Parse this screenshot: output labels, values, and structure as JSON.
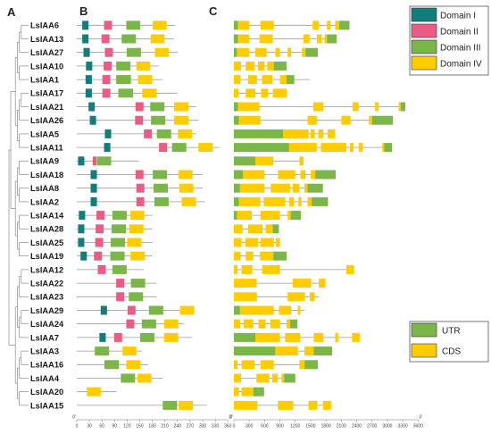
{
  "panels": {
    "a": "A",
    "b": "B",
    "c": "C"
  },
  "genes": [
    "LsIAA6",
    "LsIAA13",
    "LsIAA27",
    "LsIAA10",
    "LsIAA1",
    "LsIAA17",
    "LsIAA21",
    "LsIAA26",
    "LsIAA5",
    "LsIAA11",
    "LsIAA9",
    "LsIAA18",
    "LsIAA8",
    "LsIAA2",
    "LsIAA14",
    "LsIAA28",
    "LsIAA25",
    "LsIAA19",
    "LsIAA12",
    "LsIAA22",
    "LsIAA23",
    "LsIAA29",
    "LsIAA24",
    "LsIAA7",
    "LsIAA3",
    "LsIAA16",
    "LsIAA4",
    "LsIAA20",
    "LsIAA15"
  ],
  "domain_legend": [
    {
      "label": "Domain I",
      "color": "#127d7a"
    },
    {
      "label": "Domain II",
      "color": "#ea5b85"
    },
    {
      "label": "Domain III",
      "color": "#7ab648"
    },
    {
      "label": "Domain IV",
      "color": "#ffcc00"
    }
  ],
  "structure_legend": [
    {
      "label": "UTR",
      "color": "#7ab648"
    },
    {
      "label": "CDS",
      "color": "#ffcc00"
    }
  ],
  "protein_axis": {
    "ticks": [
      "0",
      "30",
      "60",
      "90",
      "120",
      "150",
      "180",
      "210",
      "240",
      "270",
      "300",
      "330",
      "360"
    ],
    "end_left": "0'",
    "end_right": "3'"
  },
  "gene_axis": {
    "ticks": [
      "0",
      "300",
      "600",
      "900",
      "1200",
      "1500",
      "1800",
      "2100",
      "2400",
      "2700",
      "3000",
      "3300",
      "3600"
    ],
    "end_left": "0'",
    "end_right": "3'"
  },
  "proteins": [
    {
      "len": 235,
      "doms": [
        [
          0,
          13,
          28
        ],
        [
          1,
          65,
          84
        ],
        [
          2,
          118,
          151
        ],
        [
          3,
          181,
          214
        ]
      ]
    },
    {
      "len": 232,
      "doms": [
        [
          0,
          13,
          28
        ],
        [
          1,
          59,
          78
        ],
        [
          2,
          107,
          141
        ],
        [
          3,
          176,
          209
        ]
      ]
    },
    {
      "len": 240,
      "doms": [
        [
          0,
          16,
          31
        ],
        [
          1,
          67,
          86
        ],
        [
          2,
          119,
          153
        ],
        [
          3,
          186,
          219
        ]
      ]
    },
    {
      "len": 195,
      "doms": [
        [
          0,
          22,
          37
        ],
        [
          1,
          64,
          83
        ],
        [
          2,
          94,
          128
        ],
        [
          3,
          142,
          175
        ]
      ]
    },
    {
      "len": 205,
      "doms": [
        [
          0,
          21,
          36
        ],
        [
          1,
          61,
          80
        ],
        [
          2,
          94,
          129
        ],
        [
          3,
          146,
          180
        ]
      ]
    },
    {
      "len": 240,
      "doms": [
        [
          0,
          21,
          36
        ],
        [
          1,
          61,
          80
        ],
        [
          2,
          99,
          134
        ],
        [
          3,
          156,
          190
        ]
      ]
    },
    {
      "len": 285,
      "doms": [
        [
          0,
          28,
          43
        ],
        [
          1,
          140,
          159
        ],
        [
          2,
          175,
          209
        ],
        [
          3,
          232,
          266
        ]
      ]
    },
    {
      "len": 290,
      "doms": [
        [
          0,
          31,
          46
        ],
        [
          1,
          139,
          158
        ],
        [
          2,
          177,
          211
        ],
        [
          3,
          232,
          266
        ]
      ]
    },
    {
      "len": 285,
      "doms": [
        [
          0,
          67,
          82
        ],
        [
          1,
          160,
          179
        ],
        [
          2,
          191,
          225
        ],
        [
          3,
          241,
          275
        ]
      ]
    },
    {
      "len": 340,
      "doms": [
        [
          0,
          65,
          80
        ],
        [
          1,
          196,
          215
        ],
        [
          2,
          227,
          261
        ],
        [
          3,
          290,
          324
        ]
      ]
    },
    {
      "len": 148,
      "doms": [
        [
          0,
          3,
          18
        ],
        [
          1,
          38,
          47
        ],
        [
          2,
          48,
          82
        ]
      ]
    },
    {
      "len": 300,
      "doms": [
        [
          0,
          33,
          48
        ],
        [
          1,
          140,
          159
        ],
        [
          2,
          181,
          215
        ],
        [
          3,
          243,
          276
        ]
      ]
    },
    {
      "len": 300,
      "doms": [
        [
          0,
          33,
          48
        ],
        [
          1,
          142,
          161
        ],
        [
          2,
          183,
          217
        ],
        [
          3,
          244,
          278
        ]
      ]
    },
    {
      "len": 305,
      "doms": [
        [
          0,
          33,
          48
        ],
        [
          1,
          142,
          161
        ],
        [
          2,
          185,
          219
        ],
        [
          3,
          250,
          284
        ]
      ]
    },
    {
      "len": 180,
      "doms": [
        [
          0,
          5,
          20
        ],
        [
          1,
          47,
          66
        ],
        [
          2,
          85,
          119
        ],
        [
          3,
          128,
          161
        ]
      ]
    },
    {
      "len": 180,
      "doms": [
        [
          0,
          3,
          18
        ],
        [
          1,
          45,
          64
        ],
        [
          2,
          83,
          117
        ],
        [
          3,
          125,
          159
        ]
      ]
    },
    {
      "len": 180,
      "doms": [
        [
          0,
          3,
          18
        ],
        [
          1,
          44,
          63
        ],
        [
          2,
          81,
          115
        ],
        [
          3,
          120,
          154
        ]
      ]
    },
    {
      "len": 180,
      "doms": [
        [
          0,
          9,
          24
        ],
        [
          1,
          41,
          60
        ],
        [
          2,
          80,
          114
        ],
        [
          3,
          128,
          162
        ]
      ]
    },
    {
      "len": 160,
      "doms": [
        [
          1,
          50,
          69
        ],
        [
          2,
          85,
          119
        ]
      ]
    },
    {
      "len": 190,
      "doms": [
        [
          1,
          94,
          113
        ],
        [
          2,
          129,
          163
        ]
      ]
    },
    {
      "len": 190,
      "doms": [
        [
          1,
          94,
          113
        ],
        [
          2,
          124,
          158
        ]
      ]
    },
    {
      "len": 280,
      "doms": [
        [
          0,
          57,
          72
        ],
        [
          1,
          121,
          140
        ],
        [
          2,
          172,
          206
        ],
        [
          3,
          246,
          280
        ]
      ]
    },
    {
      "len": 255,
      "doms": [
        [
          1,
          118,
          137
        ],
        [
          2,
          155,
          189
        ],
        [
          3,
          208,
          242
        ]
      ]
    },
    {
      "len": 275,
      "doms": [
        [
          0,
          54,
          69
        ],
        [
          1,
          89,
          108
        ],
        [
          2,
          151,
          185
        ],
        [
          3,
          208,
          242
        ]
      ]
    },
    {
      "len": 155,
      "doms": [
        [
          2,
          43,
          77
        ],
        [
          3,
          109,
          142
        ]
      ]
    },
    {
      "len": 170,
      "doms": [
        [
          2,
          66,
          100
        ],
        [
          3,
          118,
          151
        ]
      ]
    },
    {
      "len": 205,
      "doms": [
        [
          2,
          105,
          139
        ],
        [
          3,
          145,
          178
        ]
      ]
    },
    {
      "len": 95,
      "doms": [
        [
          3,
          24,
          57
        ]
      ]
    },
    {
      "len": 310,
      "doms": [
        [
          2,
          205,
          239
        ],
        [
          3,
          243,
          277
        ]
      ]
    }
  ],
  "gene_structures": [
    {
      "len": 2260,
      "segs": [
        [
          0,
          0,
          80
        ],
        [
          1,
          80,
          300
        ],
        [
          1,
          520,
          780
        ],
        [
          1,
          1540,
          1660
        ],
        [
          1,
          1820,
          1890
        ],
        [
          1,
          1980,
          2060
        ],
        [
          0,
          2060,
          2260
        ]
      ]
    },
    {
      "len": 2010,
      "segs": [
        [
          0,
          0,
          80
        ],
        [
          1,
          80,
          300
        ],
        [
          1,
          500,
          760
        ],
        [
          1,
          1360,
          1480
        ],
        [
          1,
          1620,
          1720
        ],
        [
          1,
          1770,
          1820
        ],
        [
          0,
          1820,
          2010
        ]
      ]
    },
    {
      "len": 1640,
      "segs": [
        [
          0,
          0,
          60
        ],
        [
          1,
          60,
          300
        ],
        [
          1,
          420,
          640
        ],
        [
          1,
          810,
          900
        ],
        [
          1,
          1050,
          1120
        ],
        [
          1,
          1330,
          1400
        ],
        [
          0,
          1400,
          1640
        ]
      ]
    },
    {
      "len": 1030,
      "segs": [
        [
          1,
          0,
          140
        ],
        [
          1,
          230,
          400
        ],
        [
          1,
          470,
          600
        ],
        [
          1,
          650,
          780
        ],
        [
          0,
          780,
          1030
        ]
      ]
    },
    {
      "len": 1480,
      "segs": [
        [
          1,
          0,
          130
        ],
        [
          1,
          280,
          450
        ],
        [
          1,
          550,
          750
        ],
        [
          1,
          900,
          1030
        ],
        [
          0,
          1030,
          1180
        ]
      ]
    },
    {
      "len": 1030,
      "segs": [
        [
          1,
          0,
          90
        ],
        [
          1,
          230,
          420
        ],
        [
          1,
          530,
          670
        ],
        [
          1,
          760,
          1030
        ]
      ]
    },
    {
      "len": 3350,
      "segs": [
        [
          0,
          0,
          80
        ],
        [
          1,
          80,
          500
        ],
        [
          1,
          1550,
          1750
        ],
        [
          1,
          2320,
          2440
        ],
        [
          1,
          2760,
          2830
        ],
        [
          1,
          3220,
          3260
        ],
        [
          0,
          3260,
          3350
        ]
      ]
    },
    {
      "len": 3110,
      "segs": [
        [
          0,
          0,
          100
        ],
        [
          1,
          100,
          520
        ],
        [
          1,
          1440,
          1620
        ],
        [
          1,
          2100,
          2280
        ],
        [
          1,
          2640,
          2700
        ],
        [
          0,
          2700,
          3110
        ]
      ]
    },
    {
      "len": 1980,
      "segs": [
        [
          0,
          0,
          960
        ],
        [
          1,
          960,
          1460
        ],
        [
          1,
          1500,
          1580
        ],
        [
          1,
          1650,
          1750
        ],
        [
          1,
          1830,
          1980
        ]
      ]
    },
    {
      "len": 3090,
      "segs": [
        [
          0,
          0,
          1080
        ],
        [
          1,
          1080,
          1620
        ],
        [
          1,
          1700,
          2200
        ],
        [
          1,
          2270,
          2340
        ],
        [
          1,
          2440,
          2520
        ],
        [
          1,
          2900,
          2940
        ],
        [
          0,
          2940,
          3090
        ]
      ]
    },
    {
      "len": 1360,
      "segs": [
        [
          0,
          0,
          420
        ],
        [
          1,
          420,
          770
        ],
        [
          1,
          1280,
          1360
        ]
      ]
    },
    {
      "len": 1990,
      "segs": [
        [
          0,
          0,
          180
        ],
        [
          1,
          180,
          600
        ],
        [
          1,
          860,
          1200
        ],
        [
          1,
          1300,
          1400
        ],
        [
          1,
          1500,
          1590
        ],
        [
          0,
          1590,
          1990
        ]
      ]
    },
    {
      "len": 1740,
      "segs": [
        [
          0,
          0,
          120
        ],
        [
          1,
          120,
          600
        ],
        [
          1,
          720,
          1100
        ],
        [
          1,
          1150,
          1280
        ],
        [
          1,
          1380,
          1440
        ],
        [
          0,
          1440,
          1740
        ]
      ]
    },
    {
      "len": 1840,
      "segs": [
        [
          0,
          0,
          100
        ],
        [
          1,
          100,
          520
        ],
        [
          1,
          580,
          1000
        ],
        [
          1,
          1080,
          1170
        ],
        [
          1,
          1260,
          1320
        ],
        [
          1,
          1440,
          1520
        ],
        [
          0,
          1520,
          1840
        ]
      ]
    },
    {
      "len": 1310,
      "segs": [
        [
          0,
          0,
          60
        ],
        [
          1,
          60,
          350
        ],
        [
          1,
          520,
          900
        ],
        [
          1,
          1050,
          1110
        ],
        [
          0,
          1110,
          1310
        ]
      ]
    },
    {
      "len": 880,
      "segs": [
        [
          1,
          0,
          170
        ],
        [
          1,
          280,
          560
        ],
        [
          1,
          620,
          760
        ],
        [
          0,
          760,
          880
        ]
      ]
    },
    {
      "len": 900,
      "segs": [
        [
          1,
          0,
          150
        ],
        [
          1,
          220,
          470
        ],
        [
          1,
          520,
          780
        ],
        [
          1,
          820,
          900
        ]
      ]
    },
    {
      "len": 1030,
      "segs": [
        [
          1,
          0,
          130
        ],
        [
          1,
          230,
          380
        ],
        [
          1,
          510,
          770
        ],
        [
          0,
          770,
          1030
        ]
      ]
    },
    {
      "len": 2350,
      "segs": [
        [
          1,
          0,
          70
        ],
        [
          1,
          150,
          360
        ],
        [
          1,
          550,
          900
        ],
        [
          1,
          2200,
          2350
        ]
      ]
    },
    {
      "len": 1790,
      "segs": [
        [
          1,
          0,
          440
        ],
        [
          1,
          1150,
          1510
        ],
        [
          1,
          1660,
          1790
        ]
      ]
    },
    {
      "len": 1660,
      "segs": [
        [
          1,
          0,
          450
        ],
        [
          1,
          1050,
          1390
        ],
        [
          1,
          1480,
          1580
        ]
      ]
    },
    {
      "len": 1380,
      "segs": [
        [
          0,
          0,
          120
        ],
        [
          1,
          120,
          780
        ],
        [
          1,
          880,
          1120
        ],
        [
          1,
          1250,
          1300
        ]
      ]
    },
    {
      "len": 1240,
      "segs": [
        [
          1,
          0,
          120
        ],
        [
          1,
          190,
          380
        ],
        [
          1,
          480,
          620
        ],
        [
          1,
          710,
          900
        ],
        [
          1,
          1030,
          1100
        ],
        [
          0,
          1100,
          1240
        ]
      ]
    },
    {
      "len": 2460,
      "segs": [
        [
          0,
          0,
          420
        ],
        [
          1,
          420,
          900
        ],
        [
          1,
          1000,
          1300
        ],
        [
          1,
          1560,
          1750
        ],
        [
          1,
          1980,
          2040
        ],
        [
          1,
          2310,
          2460
        ]
      ]
    },
    {
      "len": 1920,
      "segs": [
        [
          0,
          0,
          810
        ],
        [
          1,
          810,
          1250
        ],
        [
          1,
          1380,
          1560
        ],
        [
          0,
          1560,
          1920
        ]
      ]
    },
    {
      "len": 1640,
      "segs": [
        [
          1,
          0,
          70
        ],
        [
          1,
          150,
          400
        ],
        [
          1,
          520,
          780
        ],
        [
          1,
          1280,
          1380
        ],
        [
          0,
          1380,
          1640
        ]
      ]
    },
    {
      "len": 1200,
      "segs": [
        [
          1,
          0,
          140
        ],
        [
          1,
          440,
          690
        ],
        [
          1,
          750,
          850
        ],
        [
          1,
          930,
          980
        ],
        [
          0,
          980,
          1200
        ]
      ]
    },
    {
      "len": 590,
      "segs": [
        [
          1,
          0,
          100
        ],
        [
          1,
          150,
          380
        ],
        [
          0,
          380,
          590
        ]
      ]
    },
    {
      "len": 1900,
      "segs": [
        [
          1,
          0,
          460
        ],
        [
          1,
          860,
          1160
        ],
        [
          1,
          1460,
          1630
        ],
        [
          1,
          1740,
          1900
        ]
      ]
    }
  ]
}
